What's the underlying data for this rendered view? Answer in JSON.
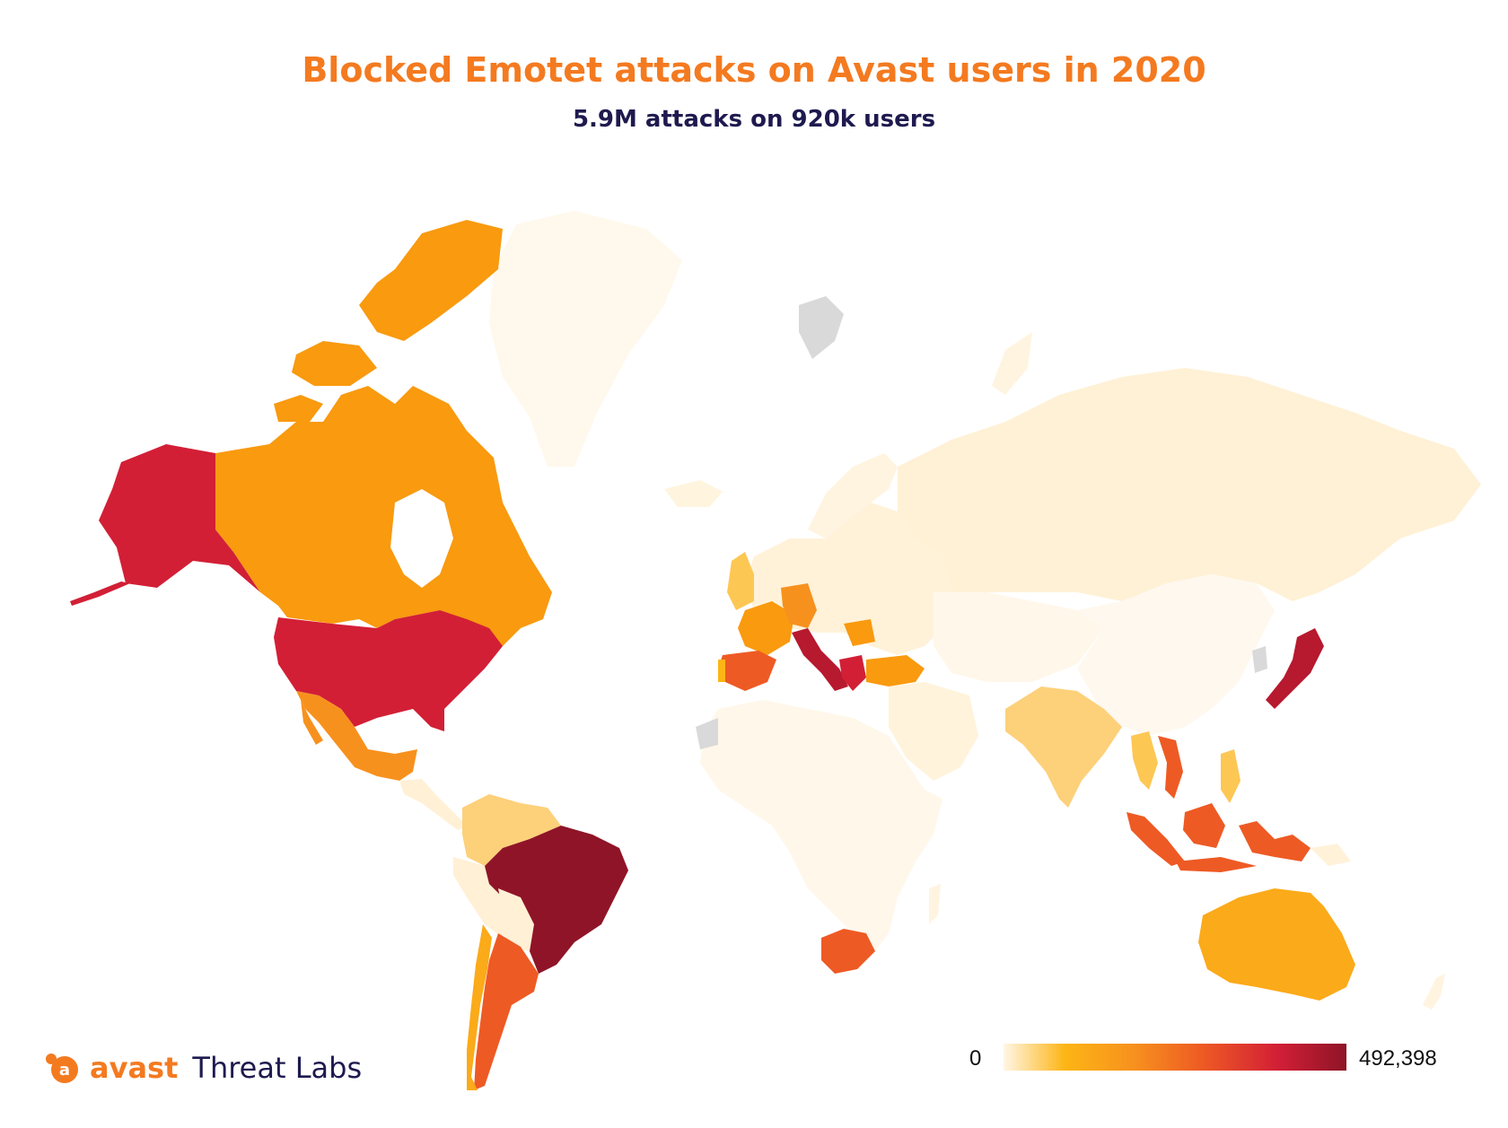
{
  "title": "Blocked Emotet attacks on Avast users in 2020",
  "subtitle": "5.9M attacks on 920k users",
  "legend": {
    "min": "0",
    "max": "492,398"
  },
  "logo": {
    "brand": "avast",
    "suffix": "Threat Labs"
  },
  "colors": {
    "title": "#f47a20",
    "subtitle": "#1e1a4f",
    "no_data": "#d9d9d9",
    "scale": [
      "#fff6e6",
      "#fdb515",
      "#f7911e",
      "#ee5a24",
      "#d21f36",
      "#8f1427"
    ]
  },
  "regions": [
    {
      "name": "Alaska (USA)",
      "level": 0.82
    },
    {
      "name": "Canada",
      "level": 0.32
    },
    {
      "name": "USA",
      "level": 0.82
    },
    {
      "name": "Mexico",
      "level": 0.42
    },
    {
      "name": "Brazil",
      "level": 1.0
    },
    {
      "name": "Argentina",
      "level": 0.6
    },
    {
      "name": "Chile",
      "level": 0.4
    },
    {
      "name": "Spain",
      "level": 0.58
    },
    {
      "name": "Italy",
      "level": 0.88
    },
    {
      "name": "Greece",
      "level": 0.82
    },
    {
      "name": "Germany",
      "level": 0.45
    },
    {
      "name": "Turkey",
      "level": 0.32
    },
    {
      "name": "South Africa",
      "level": 0.58
    },
    {
      "name": "Japan",
      "level": 0.88
    },
    {
      "name": "Indonesia",
      "level": 0.6
    },
    {
      "name": "Vietnam",
      "level": 0.62
    },
    {
      "name": "Australia",
      "level": 0.22
    },
    {
      "name": "India",
      "level": 0.1
    },
    {
      "name": "Russia",
      "level": 0.05
    },
    {
      "name": "Greenland",
      "level": 0.02
    }
  ]
}
